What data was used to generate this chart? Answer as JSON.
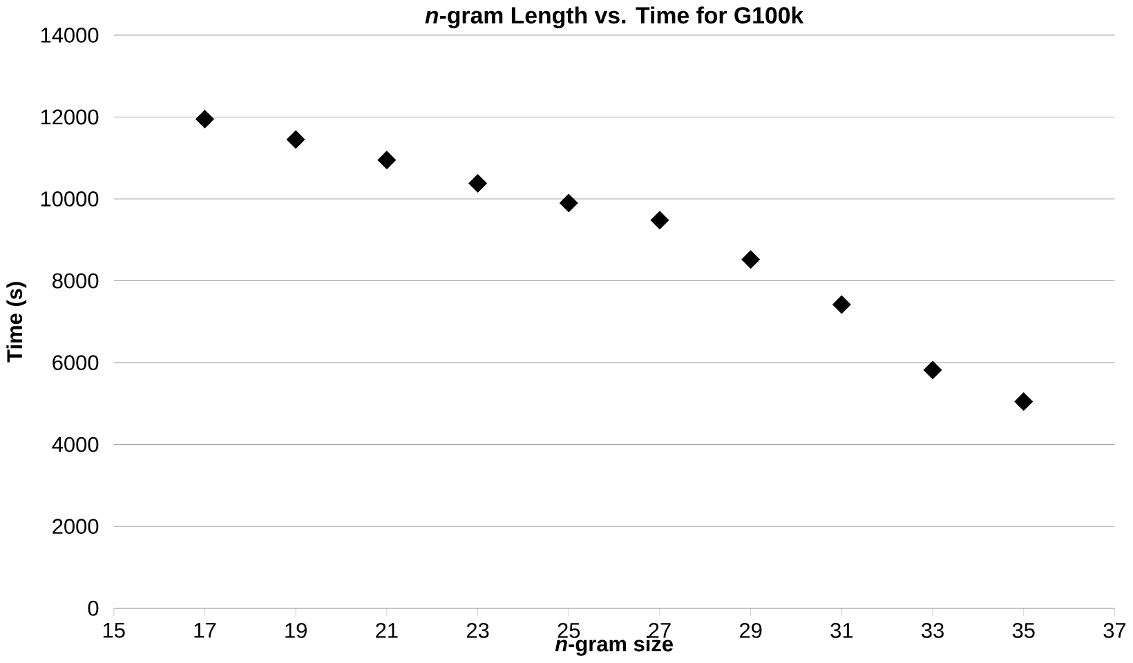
{
  "chart_data": {
    "type": "scatter",
    "title": "*n*-gram Length vs. Time for G100k",
    "xlabel": "*n*-gram size",
    "ylabel": "Time (s)",
    "x": [
      17,
      19,
      21,
      23,
      25,
      27,
      29,
      31,
      33,
      35
    ],
    "series": [
      {
        "color": "#000000",
        "values": [
          11950,
          11450,
          10950,
          10380,
          9900,
          9480,
          8520,
          7420,
          5820,
          5050
        ]
      }
    ],
    "xlim": [
      15,
      37
    ],
    "xticks": [
      15,
      17,
      19,
      21,
      23,
      25,
      27,
      29,
      31,
      33,
      35,
      37
    ],
    "ylim": [
      0,
      14000
    ],
    "yticks": [
      0,
      2000,
      4000,
      6000,
      8000,
      10000,
      12000,
      14000
    ],
    "grid": "y",
    "marker": "diamond"
  }
}
